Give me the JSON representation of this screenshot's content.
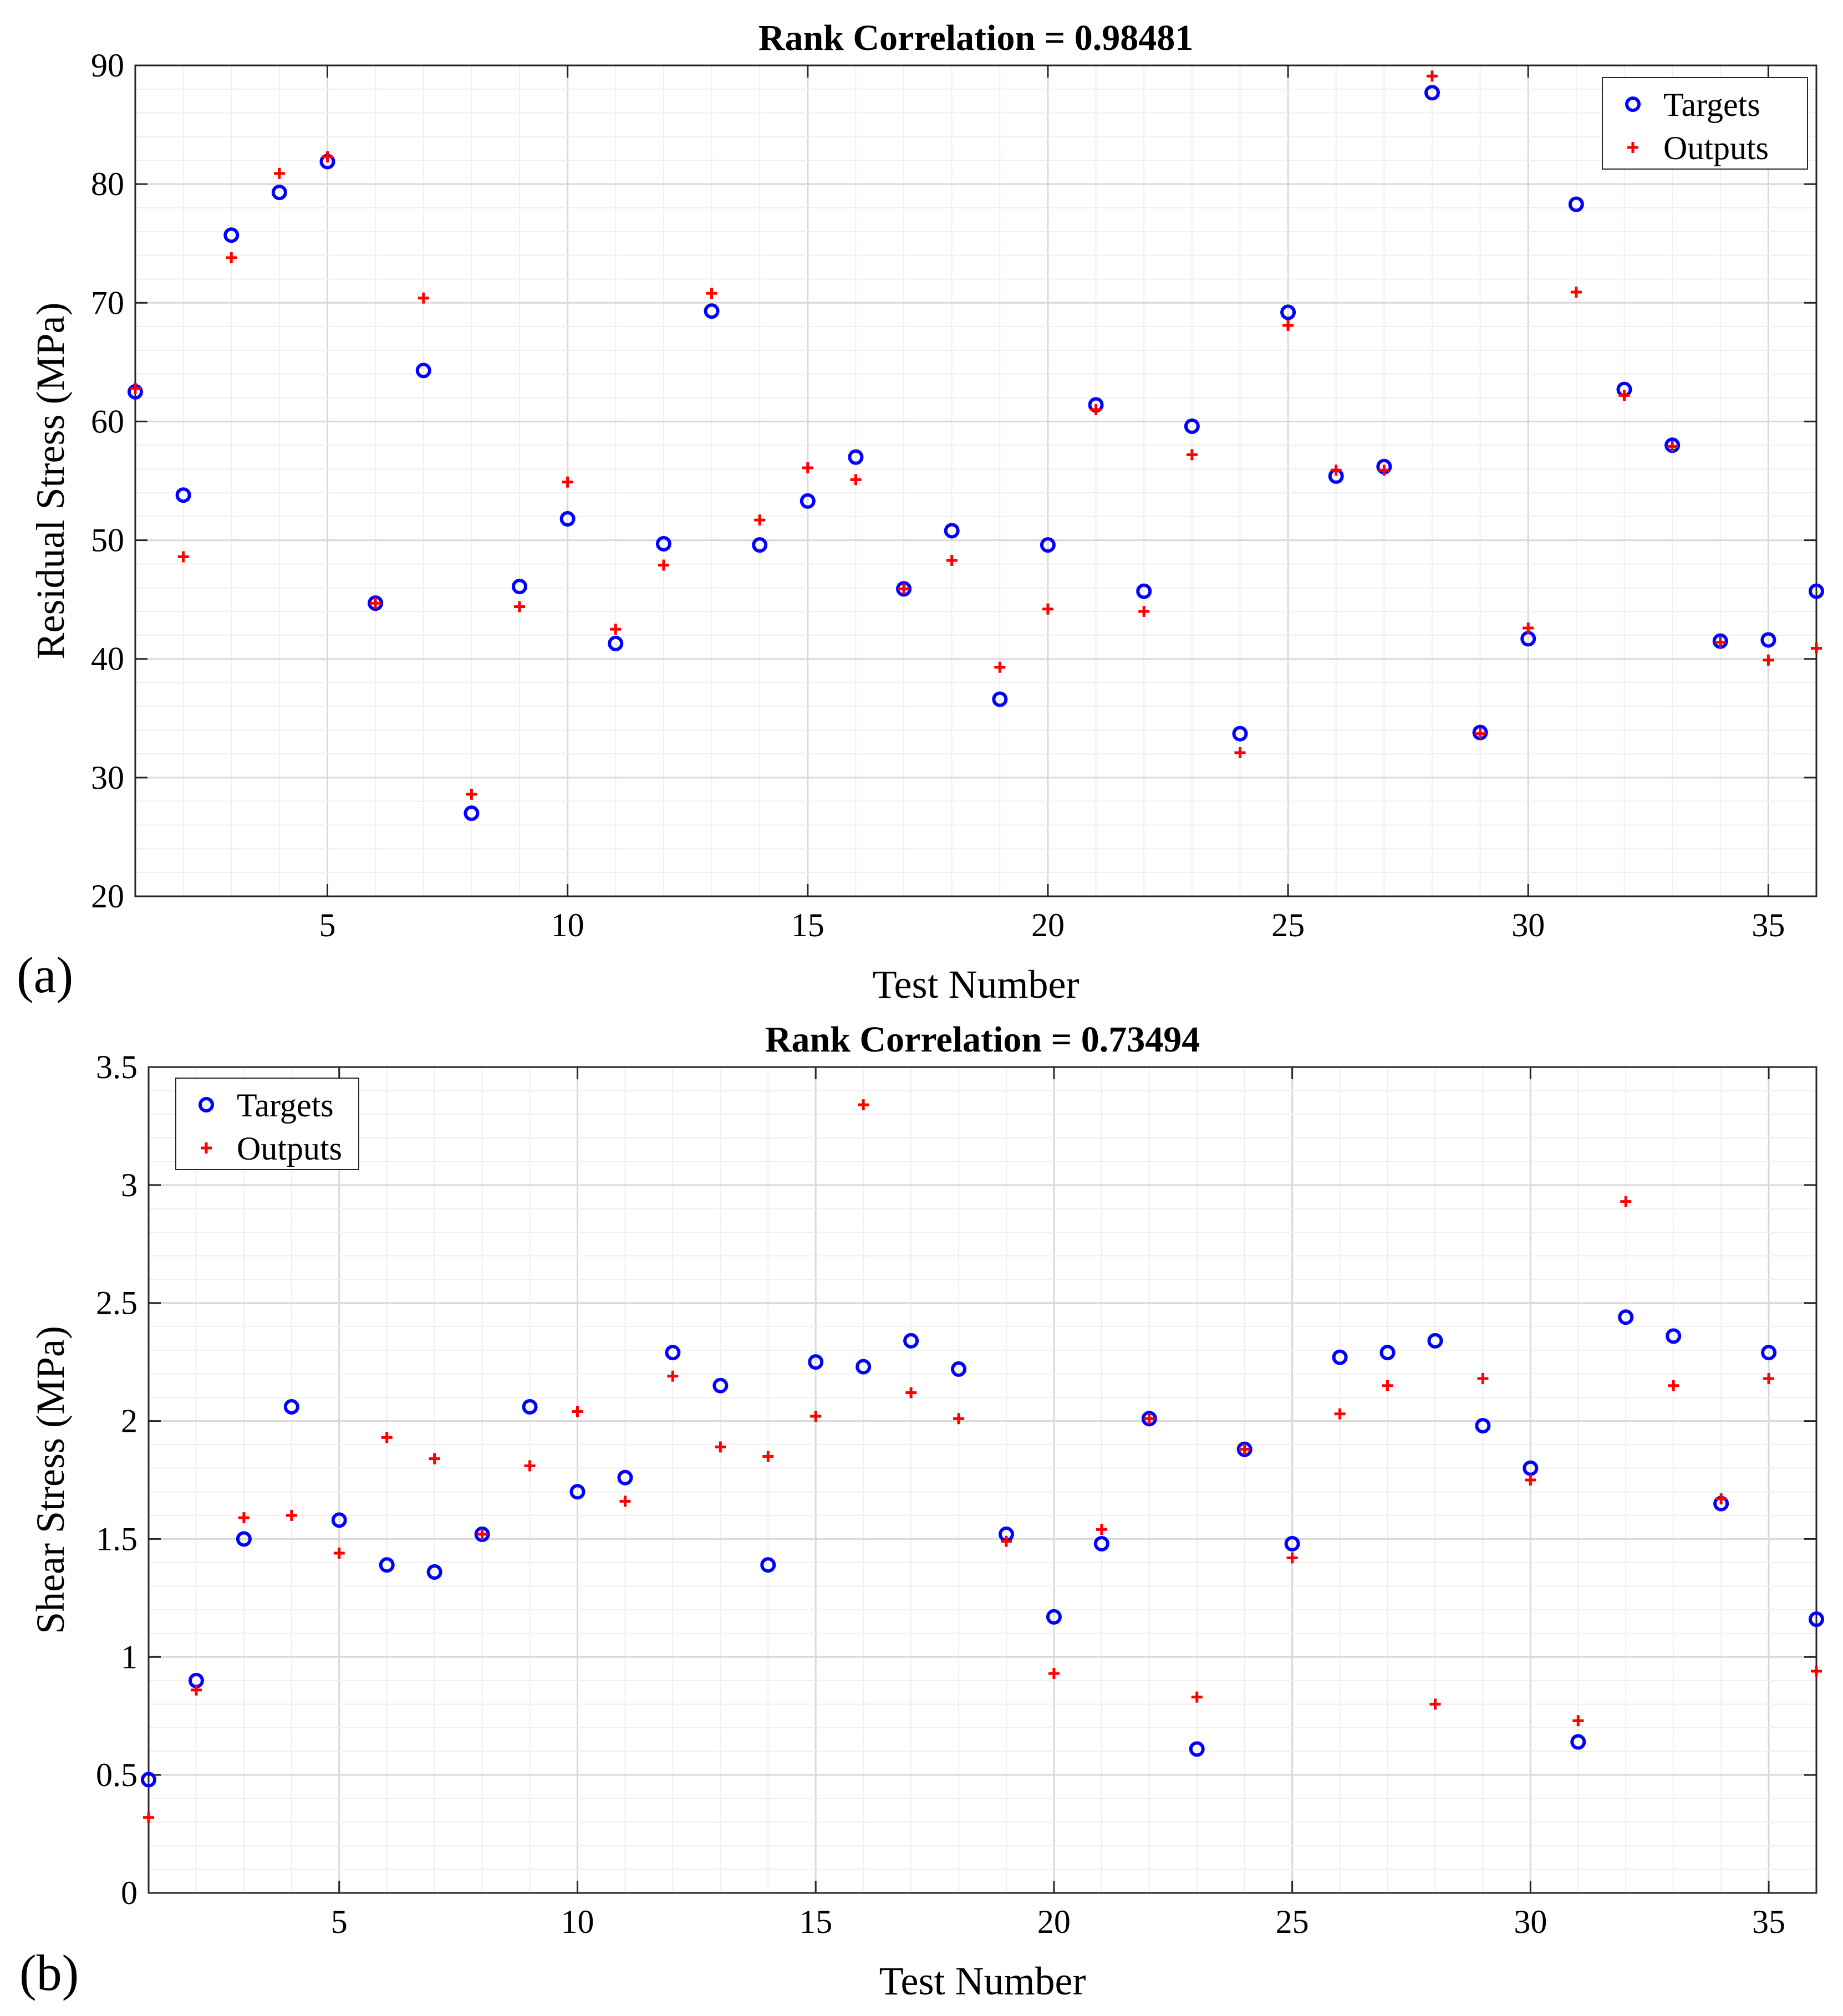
{
  "panels": [
    {
      "label": "(a)"
    },
    {
      "label": "(b)"
    }
  ],
  "chart_data": [
    {
      "type": "scatter",
      "title": "Rank Correlation = 0.98481",
      "xlabel": "Test Number",
      "ylabel": "Residual Stress (MPa)",
      "xlim": [
        1,
        36
      ],
      "ylim": [
        20,
        90
      ],
      "xticks": [
        5,
        10,
        15,
        20,
        25,
        30,
        35
      ],
      "yticks": [
        20,
        30,
        40,
        50,
        60,
        70,
        80,
        90
      ],
      "grid": true,
      "legend_position": "top-right",
      "x": [
        1,
        2,
        3,
        4,
        5,
        6,
        7,
        8,
        9,
        10,
        11,
        12,
        13,
        14,
        15,
        16,
        17,
        18,
        19,
        20,
        21,
        22,
        23,
        24,
        25,
        26,
        27,
        28,
        29,
        30,
        31,
        32,
        33,
        34,
        35,
        36
      ],
      "series": [
        {
          "name": "Targets",
          "marker": "circle",
          "color": "#0000ff",
          "values": [
            62.5,
            53.8,
            75.7,
            79.3,
            81.9,
            44.7,
            64.3,
            27.0,
            46.1,
            51.8,
            41.3,
            49.7,
            69.3,
            49.6,
            53.3,
            57.0,
            45.9,
            50.8,
            36.6,
            49.6,
            61.4,
            45.7,
            59.6,
            33.7,
            69.2,
            55.4,
            56.2,
            87.7,
            33.8,
            41.7,
            78.3,
            62.7,
            58.0,
            41.5,
            41.6,
            45.7
          ]
        },
        {
          "name": "Outputs",
          "marker": "plus",
          "color": "#ff0000",
          "values": [
            62.8,
            48.6,
            73.8,
            80.9,
            82.3,
            44.7,
            70.4,
            28.6,
            44.4,
            54.9,
            42.5,
            47.9,
            70.8,
            51.7,
            56.1,
            55.1,
            45.9,
            48.3,
            39.3,
            44.2,
            61.0,
            44.0,
            57.2,
            32.1,
            68.1,
            55.9,
            55.9,
            89.1,
            33.7,
            42.6,
            70.9,
            62.2,
            57.9,
            41.4,
            39.9,
            40.9
          ]
        }
      ]
    },
    {
      "type": "scatter",
      "title": "Rank Correlation = 0.73494",
      "xlabel": "Test Number",
      "ylabel": "Shear Stress (MPa)",
      "xlim": [
        1,
        36
      ],
      "ylim": [
        0,
        3.5
      ],
      "xticks": [
        5,
        10,
        15,
        20,
        25,
        30,
        35
      ],
      "yticks": [
        0,
        0.5,
        1,
        1.5,
        2,
        2.5,
        3,
        3.5
      ],
      "grid": true,
      "legend_position": "top-left",
      "x": [
        1,
        2,
        3,
        4,
        5,
        6,
        7,
        8,
        9,
        10,
        11,
        12,
        13,
        14,
        15,
        16,
        17,
        18,
        19,
        20,
        21,
        22,
        23,
        24,
        25,
        26,
        27,
        28,
        29,
        30,
        31,
        32,
        33,
        34,
        35,
        36
      ],
      "series": [
        {
          "name": "Targets",
          "marker": "circle",
          "color": "#0000ff",
          "values": [
            0.48,
            0.9,
            1.5,
            2.06,
            1.58,
            1.39,
            1.36,
            1.52,
            2.06,
            1.7,
            1.76,
            2.29,
            2.15,
            1.39,
            2.25,
            2.23,
            2.34,
            2.22,
            1.52,
            1.17,
            1.48,
            2.01,
            0.61,
            1.88,
            1.48,
            2.27,
            2.29,
            2.34,
            1.98,
            1.8,
            0.64,
            2.44,
            2.36,
            1.65,
            2.29,
            1.16
          ]
        },
        {
          "name": "Outputs",
          "marker": "plus",
          "color": "#ff0000",
          "values": [
            0.32,
            0.86,
            1.59,
            1.6,
            1.44,
            1.93,
            1.84,
            1.52,
            1.81,
            2.04,
            1.66,
            2.19,
            1.89,
            1.85,
            2.02,
            3.34,
            2.12,
            2.01,
            1.49,
            0.93,
            1.54,
            2.01,
            0.83,
            1.88,
            1.42,
            2.03,
            2.15,
            0.8,
            2.18,
            1.75,
            0.73,
            2.93,
            2.15,
            1.67,
            2.18,
            0.94
          ]
        }
      ]
    }
  ]
}
